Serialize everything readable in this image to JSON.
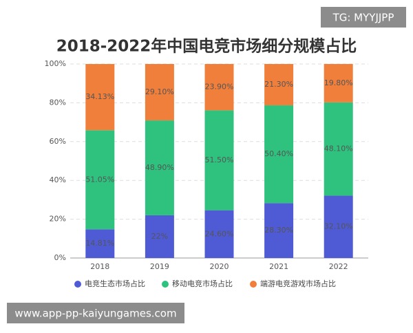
{
  "chart_data": {
    "type": "stacked_bar",
    "title": "2018-2022年中国电竞市场细分规模占比",
    "categories": [
      "2018",
      "2019",
      "2020",
      "2021",
      "2022"
    ],
    "series": [
      {
        "name": "电竞生态市场占比",
        "color": "#4f5bd5",
        "values": [
          14.81,
          22,
          24.6,
          28.3,
          32.1
        ],
        "value_labels": [
          "14.81%",
          "22%",
          "24.60%",
          "28.30%",
          "32.10%"
        ]
      },
      {
        "name": "移动电竞市场占比",
        "color": "#2ec27e",
        "values": [
          51.05,
          48.9,
          51.5,
          50.4,
          48.1
        ],
        "value_labels": [
          "51.05%",
          "48.90%",
          "51.50%",
          "50.40%",
          "48.10%"
        ]
      },
      {
        "name": "端游电竞游戏市场占比",
        "color": "#f07f3c",
        "values": [
          34.13,
          29.1,
          23.9,
          21.3,
          19.8
        ],
        "value_labels": [
          "34.13%",
          "29.10%",
          "23.90%",
          "21.30%",
          "19.80%"
        ]
      }
    ],
    "ylim": [
      0,
      100
    ],
    "yticks": [
      {
        "value": 0,
        "label": "0%"
      },
      {
        "value": 20,
        "label": "20%"
      },
      {
        "value": 40,
        "label": "40%"
      },
      {
        "value": 60,
        "label": "60%"
      },
      {
        "value": 80,
        "label": "80%"
      },
      {
        "value": 100,
        "label": "100%"
      }
    ],
    "grid": true,
    "legend": "bottom"
  },
  "overlay": {
    "tag": "TG: MYYJJPP",
    "url": "www.app-pp-kaiyungames.com"
  }
}
